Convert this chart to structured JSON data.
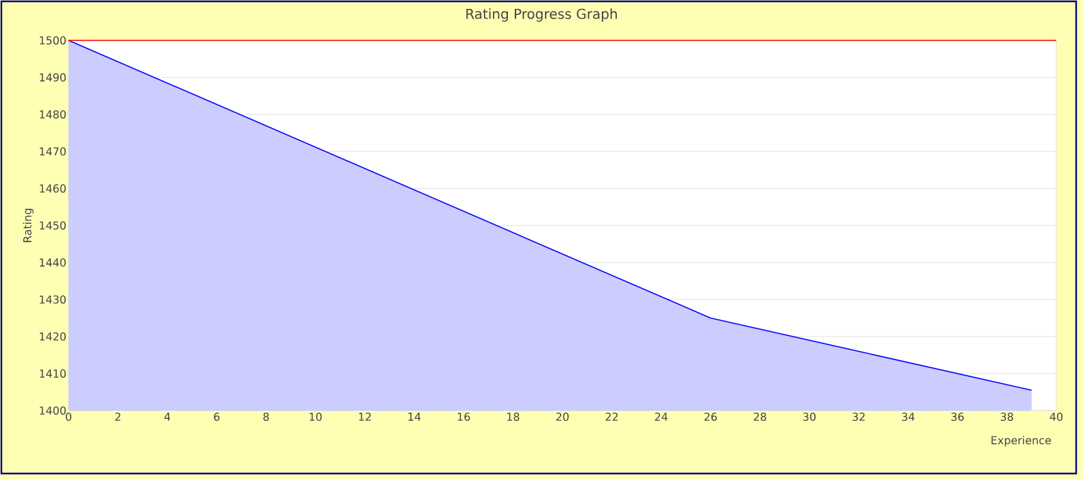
{
  "chart_data": {
    "type": "area",
    "title": "Rating Progress Graph",
    "xlabel": "Experience",
    "ylabel": "Rating",
    "x": [
      0,
      26,
      39
    ],
    "series": [
      {
        "color": "#0000ff",
        "values": [
          1500,
          1425,
          1405.5
        ]
      }
    ],
    "xlim": [
      0,
      40
    ],
    "xticks": [
      0,
      2,
      4,
      6,
      8,
      10,
      12,
      14,
      16,
      18,
      20,
      22,
      24,
      26,
      28,
      30,
      32,
      34,
      36,
      38,
      40
    ],
    "ylim": [
      1400,
      1500
    ],
    "yticks": [
      1400,
      1410,
      1420,
      1430,
      1440,
      1450,
      1460,
      1470,
      1480,
      1490,
      1500
    ],
    "grid": "y",
    "ref_lines": [
      {
        "axis": "y",
        "value": 1500,
        "color": "#ff0000"
      }
    ]
  }
}
